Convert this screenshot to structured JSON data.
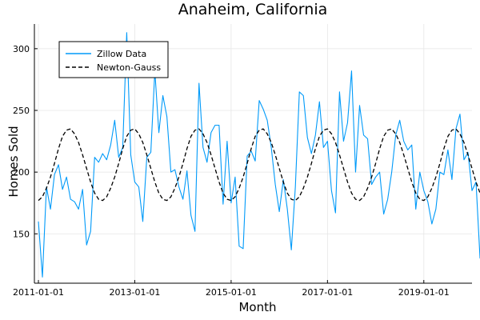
{
  "chart_data": {
    "type": "line",
    "title": "Anaheim, California",
    "xlabel": "Month",
    "ylabel": "Homes Sold",
    "x_start": "2011-01-01",
    "x_interval": "month",
    "xlim": [
      "2010-12-01",
      "2020-01-01"
    ],
    "ylim": [
      110,
      320
    ],
    "xticks": [
      "2011-01-01",
      "2013-01-01",
      "2015-01-01",
      "2017-01-01",
      "2019-01-01"
    ],
    "yticks": [
      150,
      200,
      250,
      300
    ],
    "grid": true,
    "legend_position": "top-left",
    "series": [
      {
        "name": "Zillow Data",
        "color": "#009af9",
        "style": "solid",
        "values": [
          160,
          115,
          188,
          170,
          198,
          206,
          186,
          196,
          178,
          176,
          170,
          186,
          141,
          152,
          212,
          208,
          215,
          210,
          222,
          242,
          212,
          220,
          313,
          214,
          192,
          188,
          160,
          212,
          216,
          282,
          232,
          262,
          245,
          200,
          202,
          188,
          178,
          201,
          165,
          152,
          272,
          220,
          208,
          232,
          238,
          238,
          174,
          225,
          175,
          196,
          140,
          138,
          213,
          217,
          209,
          258,
          251,
          242,
          220,
          190,
          168,
          194,
          170,
          137,
          188,
          265,
          262,
          228,
          215,
          230,
          257,
          220,
          225,
          185,
          167,
          265,
          225,
          240,
          282,
          200,
          254,
          230,
          227,
          190,
          196,
          200,
          166,
          178,
          200,
          230,
          242,
          225,
          218,
          222,
          170,
          200,
          185,
          176,
          158,
          170,
          200,
          198,
          218,
          194,
          235,
          247,
          210,
          216,
          185,
          192,
          130
        ],
        "data_labels": []
      },
      {
        "name": "Newton-Gauss",
        "color": "#000000",
        "style": "dashed",
        "values": [
          177,
          180,
          187,
          196,
          207,
          219,
          229,
          234,
          235,
          231,
          224,
          214,
          203,
          192,
          183,
          178,
          177,
          180,
          187,
          196,
          207,
          219,
          229,
          234,
          235,
          231,
          224,
          214,
          203,
          192,
          183,
          178,
          177,
          180,
          187,
          196,
          207,
          219,
          229,
          234,
          235,
          231,
          224,
          214,
          203,
          192,
          183,
          178,
          177,
          180,
          187,
          196,
          207,
          219,
          229,
          234,
          235,
          231,
          224,
          214,
          203,
          192,
          183,
          178,
          177,
          180,
          187,
          196,
          207,
          219,
          229,
          234,
          235,
          231,
          224,
          214,
          203,
          192,
          183,
          178,
          177,
          180,
          187,
          196,
          207,
          219,
          229,
          234,
          235,
          231,
          224,
          214,
          203,
          192,
          183,
          178,
          177,
          180,
          187,
          196,
          207,
          219,
          229,
          234,
          235,
          231,
          224,
          214,
          203,
          192,
          183,
          178
        ]
      }
    ]
  }
}
